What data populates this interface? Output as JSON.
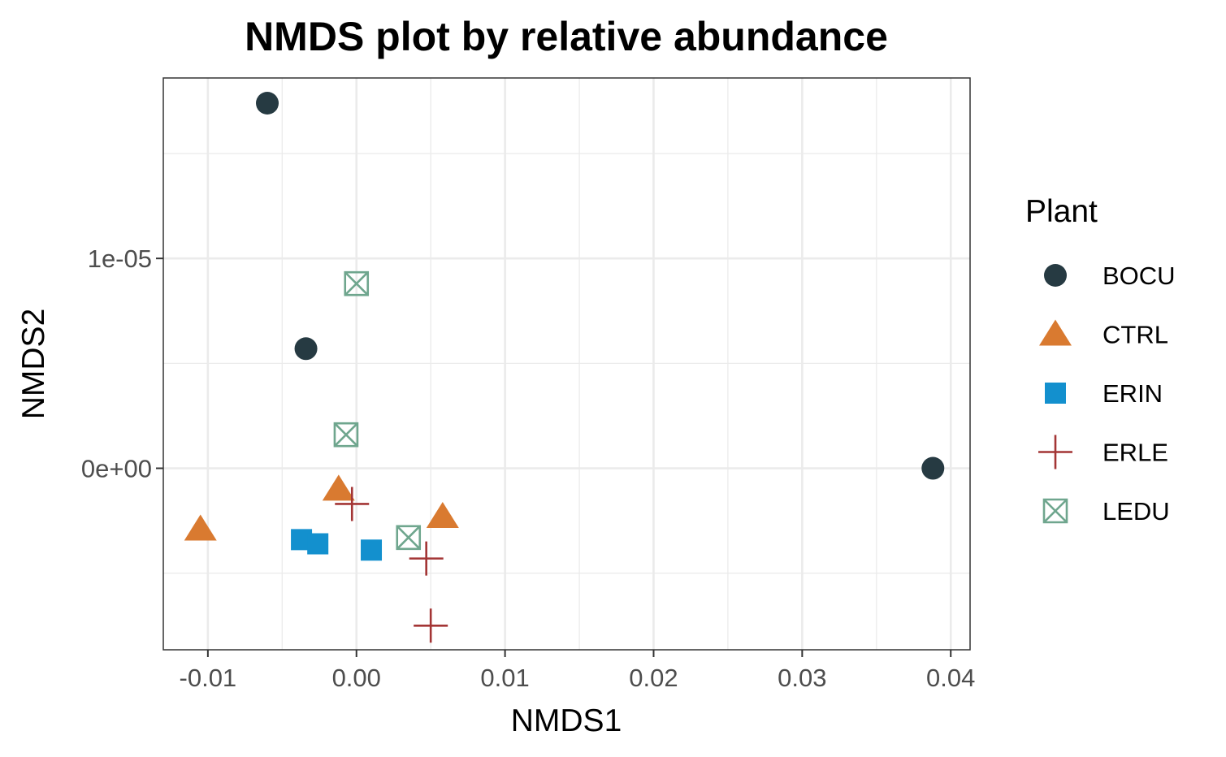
{
  "chart_data": {
    "type": "scatter",
    "title": "NMDS plot by relative abundance",
    "xlabel": "NMDS1",
    "ylabel": "NMDS2",
    "xlim": [
      -0.013,
      0.0413
    ],
    "ylim": [
      -8.65e-06,
      1.86e-05
    ],
    "x_ticks": [
      -0.01,
      0.0,
      0.01,
      0.02,
      0.03,
      0.04
    ],
    "x_tick_labels": [
      "-0.01",
      "0.00",
      "0.01",
      "0.02",
      "0.03",
      "0.04"
    ],
    "y_ticks": [
      0.0,
      1e-05
    ],
    "y_tick_labels": [
      "0e+00",
      "1e-05"
    ],
    "grid": true,
    "legend_title": "Plant",
    "legend_position": "right",
    "series": [
      {
        "name": "BOCU",
        "shape": "circle",
        "color": "#263A42",
        "points": [
          [
            -0.006,
            1.74e-05
          ],
          [
            -0.0034,
            5.7e-06
          ],
          [
            0.0388,
            0.0
          ]
        ]
      },
      {
        "name": "CTRL",
        "shape": "triangle",
        "color": "#D97A30",
        "points": [
          [
            -0.0105,
            -2.9e-06
          ],
          [
            -0.0012,
            -1e-06
          ],
          [
            0.0058,
            -2.3e-06
          ]
        ]
      },
      {
        "name": "ERIN",
        "shape": "square",
        "color": "#1390CE",
        "points": [
          [
            -0.0037,
            -3.4e-06
          ],
          [
            -0.0026,
            -3.6e-06
          ],
          [
            0.001,
            -3.9e-06
          ]
        ]
      },
      {
        "name": "ERLE",
        "shape": "plus",
        "color": "#A33535",
        "points": [
          [
            -0.0003,
            -1.7e-06
          ],
          [
            0.0047,
            -4.3e-06
          ],
          [
            0.005,
            -7.5e-06
          ]
        ]
      },
      {
        "name": "LEDU",
        "shape": "square-x",
        "color": "#6FA68E",
        "points": [
          [
            0.0,
            8.8e-06
          ],
          [
            -0.0007,
            1.6e-06
          ],
          [
            0.0035,
            -3.3e-06
          ]
        ]
      }
    ]
  }
}
